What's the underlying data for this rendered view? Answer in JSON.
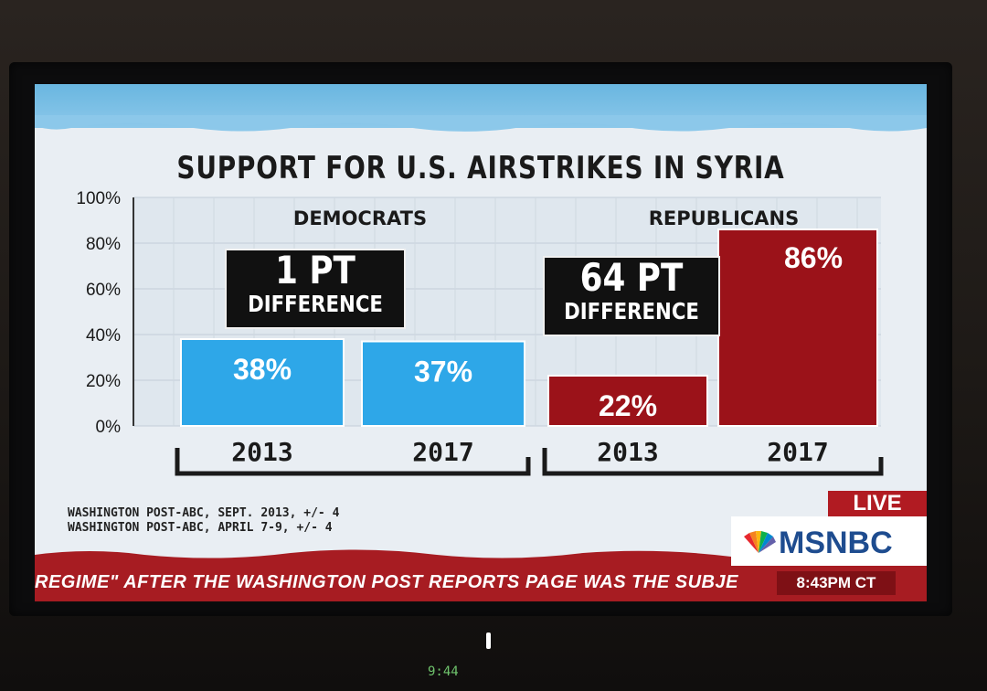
{
  "title": "SUPPORT FOR U.S. AIRSTRIKES IN SYRIA",
  "chart_data": {
    "type": "bar",
    "ylim": [
      0,
      100
    ],
    "yticks": [
      "100%",
      "80%",
      "60%",
      "40%",
      "20%",
      "0%"
    ],
    "groups": [
      {
        "name": "DEMOCRATS",
        "categories": [
          "2013",
          "2017"
        ],
        "values": [
          38,
          37
        ],
        "labels": [
          "38%",
          "37%"
        ],
        "color": "#2ea7e8",
        "annotation": {
          "big": "1 PT",
          "small": "DIFFERENCE"
        }
      },
      {
        "name": "REPUBLICANS",
        "categories": [
          "2013",
          "2017"
        ],
        "values": [
          22,
          86
        ],
        "labels": [
          "22%",
          "86%"
        ],
        "color": "#9b1219",
        "annotation": {
          "big": "64 PT",
          "small": "DIFFERENCE"
        }
      }
    ]
  },
  "sources": [
    "WASHINGTON POST-ABC, SEPT. 2013, +/- 4",
    "WASHINGTON POST-ABC, APRIL 7-9, +/- 4"
  ],
  "broadcast": {
    "live": "LIVE",
    "network": "MSNBC",
    "ticker": "REGIME\" AFTER THE WASHINGTON POST REPORTS PAGE WAS THE SUBJE",
    "time": "8:43PM CT"
  },
  "device": {
    "clock": "9:44"
  }
}
